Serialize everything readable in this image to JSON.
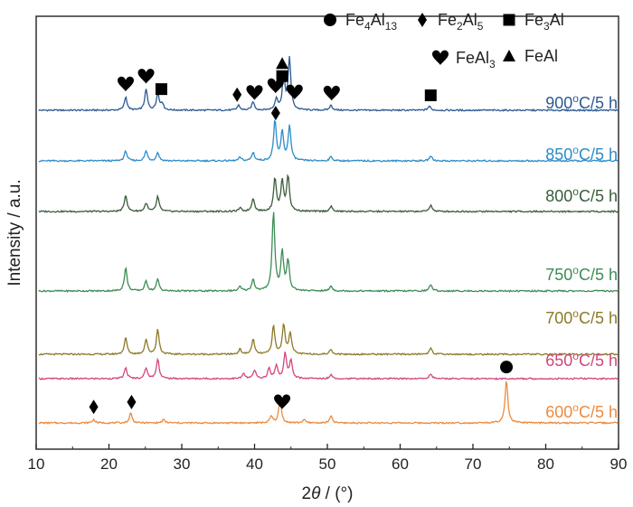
{
  "chart_data": {
    "type": "line",
    "xlabel": "2θ / (°)",
    "ylabel": "Intensity / a.u.",
    "xlim": [
      10,
      90
    ],
    "x_ticks": [
      10,
      20,
      30,
      40,
      50,
      60,
      70,
      80,
      90
    ],
    "grid": false,
    "series": [
      {
        "name": "900oC/5 h",
        "label": {
          "pre": "900",
          "sup": "o",
          "post": "C/5 h"
        },
        "color": "#2c5a93",
        "baseline": 0.0,
        "peaks": [
          [
            22.3,
            0.16
          ],
          [
            25.1,
            0.25
          ],
          [
            26.7,
            0.2
          ],
          [
            27.3,
            0.08
          ],
          [
            37.8,
            0.06
          ],
          [
            39.8,
            0.1
          ],
          [
            43.0,
            0.14
          ],
          [
            44.0,
            0.4
          ],
          [
            44.8,
            0.62
          ],
          [
            50.5,
            0.06
          ],
          [
            64.0,
            0.05
          ]
        ]
      },
      {
        "name": "850oC/5 h",
        "label": {
          "pre": "850",
          "sup": "o",
          "post": "C/5 h"
        },
        "color": "#2d8bc6",
        "baseline": 0.0,
        "peaks": [
          [
            22.3,
            0.12
          ],
          [
            25.1,
            0.12
          ],
          [
            26.7,
            0.1
          ],
          [
            38.0,
            0.04
          ],
          [
            39.8,
            0.1
          ],
          [
            42.8,
            0.48
          ],
          [
            43.8,
            0.34
          ],
          [
            44.8,
            0.42
          ],
          [
            50.5,
            0.05
          ],
          [
            64.2,
            0.06
          ]
        ]
      },
      {
        "name": "800oC/5 h",
        "label": {
          "pre": "800",
          "sup": "o",
          "post": "C/5 h"
        },
        "color": "#3a5c3a",
        "baseline": 0.0,
        "peaks": [
          [
            22.3,
            0.2
          ],
          [
            25.1,
            0.1
          ],
          [
            26.7,
            0.18
          ],
          [
            38.0,
            0.04
          ],
          [
            39.8,
            0.16
          ],
          [
            42.8,
            0.4
          ],
          [
            43.8,
            0.36
          ],
          [
            44.6,
            0.42
          ],
          [
            50.5,
            0.06
          ],
          [
            64.2,
            0.08
          ]
        ]
      },
      {
        "name": "750oC/5 h",
        "label": {
          "pre": "750",
          "sup": "o",
          "post": "C/5 h"
        },
        "color": "#3d8c55",
        "baseline": 0.0,
        "peaks": [
          [
            22.3,
            0.28
          ],
          [
            25.1,
            0.12
          ],
          [
            26.7,
            0.14
          ],
          [
            38.0,
            0.05
          ],
          [
            39.8,
            0.14
          ],
          [
            42.6,
            0.95
          ],
          [
            43.8,
            0.46
          ],
          [
            44.6,
            0.36
          ],
          [
            50.5,
            0.06
          ],
          [
            64.2,
            0.08
          ]
        ]
      },
      {
        "name": "700oC/5 h",
        "label": {
          "pre": "700",
          "sup": "o",
          "post": "C/5 h"
        },
        "color": "#8c7a28",
        "baseline": 0.0,
        "peaks": [
          [
            22.3,
            0.2
          ],
          [
            25.1,
            0.18
          ],
          [
            26.7,
            0.3
          ],
          [
            38.0,
            0.06
          ],
          [
            39.8,
            0.18
          ],
          [
            42.6,
            0.34
          ],
          [
            44.0,
            0.36
          ],
          [
            44.9,
            0.26
          ],
          [
            50.5,
            0.06
          ],
          [
            64.2,
            0.08
          ]
        ]
      },
      {
        "name": "650oC/5 h",
        "label": {
          "pre": "650",
          "sup": "o",
          "post": "C/5 h"
        },
        "color": "#d2467e",
        "baseline": 0.0,
        "peaks": [
          [
            22.3,
            0.13
          ],
          [
            25.1,
            0.13
          ],
          [
            26.7,
            0.24
          ],
          [
            38.5,
            0.06
          ],
          [
            40.0,
            0.1
          ],
          [
            42.0,
            0.12
          ],
          [
            43.0,
            0.16
          ],
          [
            44.2,
            0.3
          ],
          [
            45.0,
            0.22
          ],
          [
            50.5,
            0.05
          ],
          [
            64.2,
            0.06
          ]
        ]
      },
      {
        "name": "600oC/5 h",
        "label": {
          "pre": "600",
          "sup": "o",
          "post": "C/5 h"
        },
        "color": "#ee8a3d",
        "baseline": 0.0,
        "peaks": [
          [
            17.9,
            0.04
          ],
          [
            23.0,
            0.12
          ],
          [
            27.5,
            0.04
          ],
          [
            42.3,
            0.08
          ],
          [
            43.5,
            0.28
          ],
          [
            46.8,
            0.04
          ],
          [
            50.5,
            0.08
          ],
          [
            74.6,
            0.52
          ]
        ]
      }
    ],
    "phase_markers": [
      {
        "series": "900oC/5 h",
        "x": 22.3,
        "symbol": "heart"
      },
      {
        "series": "900oC/5 h",
        "x": 25.1,
        "symbol": "heart"
      },
      {
        "series": "900oC/5 h",
        "x": 27.2,
        "symbol": "square"
      },
      {
        "series": "900oC/5 h",
        "x": 37.6,
        "symbol": "diamond"
      },
      {
        "series": "900oC/5 h",
        "x": 40.0,
        "symbol": "heart"
      },
      {
        "series": "900oC/5 h",
        "x": 42.9,
        "symbol": "heart"
      },
      {
        "series": "900oC/5 h",
        "x": 43.8,
        "symbol": "square"
      },
      {
        "series": "900oC/5 h",
        "x": 43.8,
        "symbol": "triangle"
      },
      {
        "series": "900oC/5 h",
        "x": 45.5,
        "symbol": "heart"
      },
      {
        "series": "900oC/5 h",
        "x": 50.6,
        "symbol": "heart"
      },
      {
        "series": "900oC/5 h",
        "x": 64.2,
        "symbol": "square"
      },
      {
        "series": "850oC/5 h",
        "x": 42.9,
        "symbol": "diamond"
      },
      {
        "series": "600oC/5 h",
        "x": 17.9,
        "symbol": "diamond"
      },
      {
        "series": "600oC/5 h",
        "x": 23.1,
        "symbol": "diamond"
      },
      {
        "series": "600oC/5 h",
        "x": 43.8,
        "symbol": "heart"
      },
      {
        "series": "600oC/5 h",
        "x": 74.6,
        "symbol": "circle"
      }
    ],
    "legend": {
      "placement": "top-right",
      "items": [
        {
          "symbol": "circle",
          "parts": [
            {
              "t": "Fe"
            },
            {
              "sub": "4"
            },
            {
              "t": "Al"
            },
            {
              "sub": "13"
            }
          ]
        },
        {
          "symbol": "diamond",
          "parts": [
            {
              "t": "Fe"
            },
            {
              "sub": "2"
            },
            {
              "t": "Al"
            },
            {
              "sub": "5"
            }
          ]
        },
        {
          "symbol": "square",
          "parts": [
            {
              "t": "Fe"
            },
            {
              "sub": "3"
            },
            {
              "t": "Al"
            }
          ]
        },
        {
          "symbol": "heart",
          "parts": [
            {
              "t": "FeAl"
            },
            {
              "sub": "3"
            }
          ]
        },
        {
          "symbol": "triangle",
          "parts": [
            {
              "t": "FeAl"
            }
          ]
        }
      ]
    }
  }
}
